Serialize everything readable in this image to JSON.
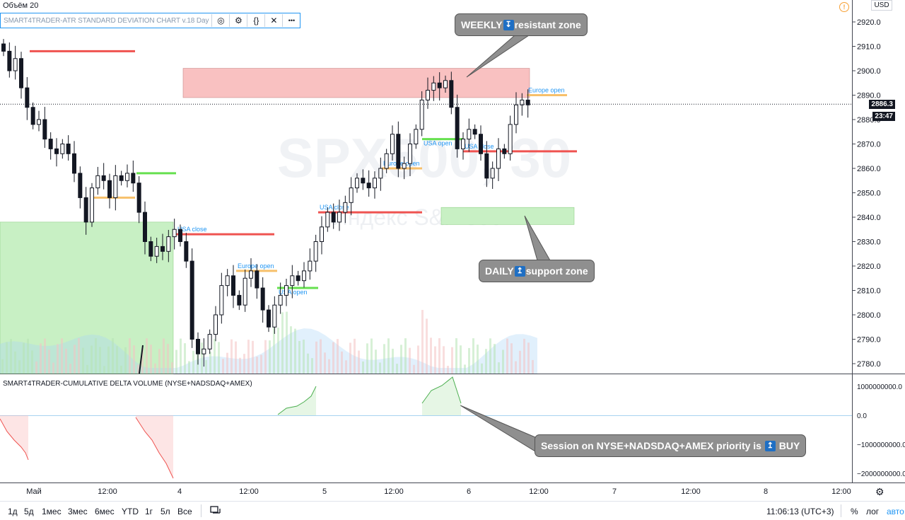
{
  "volume_label": "Объём 20",
  "indicator": {
    "title": "SMART4TRADER-ATR STANDARD DEVIATION CHART v.18 Day",
    "buttons": [
      {
        "name": "hide-icon",
        "glyph": "◎"
      },
      {
        "name": "settings-icon",
        "glyph": "⚙"
      },
      {
        "name": "source-code-icon",
        "glyph": "{}"
      },
      {
        "name": "close-icon",
        "glyph": "✕"
      },
      {
        "name": "more-icon",
        "glyph": "•••"
      }
    ]
  },
  "watermark": {
    "symbol": "SPX500, 30",
    "name": "Индекс S&P 500"
  },
  "currency": "USD",
  "alert_icon": "!",
  "price_axis": [
    "2920.0",
    "2910.0",
    "2900.0",
    "2890.0",
    "2880.0",
    "2870.0",
    "2860.0",
    "2850.0",
    "2840.0",
    "2830.0",
    "2820.0",
    "2810.0",
    "2800.0",
    "2790.0",
    "2780.0"
  ],
  "last_price": "2886.3",
  "countdown": "23:47",
  "cdv_axis": [
    "1000000000.0",
    "0.0",
    "−1000000000.0",
    "−2000000000.0"
  ],
  "cdv_label": "SMART4TRADER-CUMULATIVE DELTA VOLUME (NYSE+NADSDAQ+AMEX)",
  "time_axis": [
    "Май",
    "12:00",
    "4",
    "12:00",
    "5",
    "12:00",
    "6",
    "12:00",
    "7",
    "12:00",
    "8",
    "12:00"
  ],
  "session_labels": {
    "usa_close": "USA close",
    "usa_open": "USA open",
    "europe_open": "Europe open"
  },
  "callouts": {
    "weekly": {
      "before": "WEEKLY",
      "arrow": "↧",
      "after": "resistant zone"
    },
    "daily": {
      "before": "DAILY",
      "arrow": "↥",
      "after": "support zone"
    },
    "session": {
      "before": "Session on NYSE+NADSDAQ+AMEX priority is",
      "arrow": "↥",
      "after": "BUY"
    }
  },
  "colors": {
    "up": "#131722",
    "resistance_zone": "#f9c1c1",
    "support_zone": "#c8f0c4",
    "red_line": "#ef5350",
    "green_line": "#66e04f",
    "orange_line": "#f7c06b",
    "session_text": "#2196f3"
  },
  "bottom_bar": {
    "ranges": [
      "1д",
      "5д",
      "1мес",
      "3мес",
      "6мес",
      "YTD",
      "1г",
      "5л",
      "Все"
    ],
    "compare_icon": "compare-icon",
    "clock": "11:06:13 (UTC+3)",
    "percent": "%",
    "log": "лог",
    "auto": "авто"
  },
  "chart_data": {
    "type": "candlestick",
    "symbol": "SPX500",
    "timeframe": "30",
    "ylim": [
      2776,
      2928
    ],
    "x_categories": [
      "Май",
      "12:00",
      "4",
      "12:00",
      "5",
      "12:00",
      "6",
      "12:00",
      "7",
      "12:00",
      "8",
      "12:00"
    ],
    "candles_close": [
      2908,
      2900,
      2905,
      2893,
      2885,
      2878,
      2880,
      2872,
      2868,
      2866,
      2870,
      2866,
      2858,
      2848,
      2838,
      2852,
      2857,
      2855,
      2848,
      2857,
      2855,
      2858,
      2854,
      2842,
      2830,
      2824,
      2828,
      2826,
      2832,
      2835,
      2830,
      2822,
      2790,
      2784,
      2786,
      2792,
      2800,
      2812,
      2816,
      2808,
      2804,
      2815,
      2818,
      2811,
      2802,
      2795,
      2804,
      2808,
      2812,
      2816,
      2814,
      2818,
      2822,
      2830,
      2836,
      2842,
      2838,
      2842,
      2846,
      2852,
      2856,
      2854,
      2852,
      2856,
      2860,
      2866,
      2874,
      2860,
      2862,
      2870,
      2876,
      2888,
      2892,
      2895,
      2893,
      2896,
      2885,
      2868,
      2872,
      2876,
      2874,
      2866,
      2856,
      2860,
      2868,
      2866,
      2878,
      2886,
      2888,
      2886
    ],
    "zones": [
      {
        "label": "WEEKLY resistant zone",
        "from": 2889,
        "to": 2901
      },
      {
        "label": "DAILY support zone",
        "from": 2837,
        "to": 2844
      }
    ],
    "cdv_ylim": [
      -2200000000,
      1200000000
    ]
  }
}
